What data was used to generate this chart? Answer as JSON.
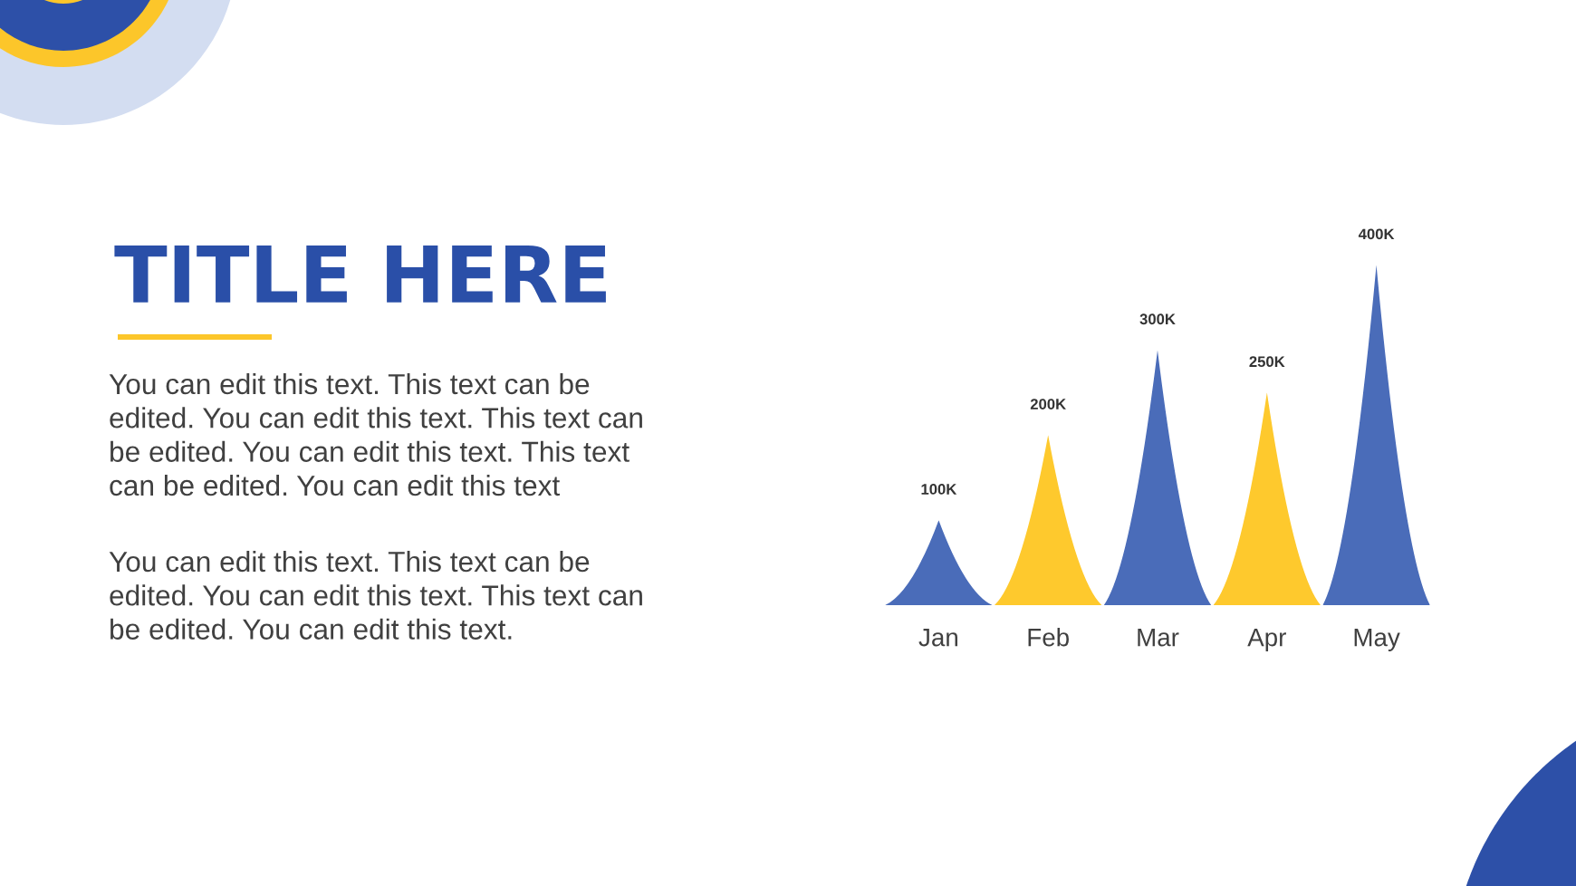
{
  "chart_data": {
    "type": "bar",
    "title": "TITLE HERE",
    "annotations": [
      "You can edit this text. This text can be\nedited. You can edit this text. This text can\nbe edited. You can edit this text. This text\ncan be edited. You can edit this text",
      "You can edit this text. This text can be\nedited. You can edit this text. This text can\nbe edited. You can edit this text."
    ],
    "categories": [
      "Jan",
      "Feb",
      "Mar",
      "Apr",
      "May"
    ],
    "values": [
      100,
      200,
      300,
      250,
      400
    ],
    "value_labels": [
      "100K",
      "200K",
      "300K",
      "250K",
      "400K"
    ],
    "colors": [
      "#4a6cb9",
      "#fec92d",
      "#4a6cb9",
      "#fec92d",
      "#4a6cb9"
    ]
  }
}
